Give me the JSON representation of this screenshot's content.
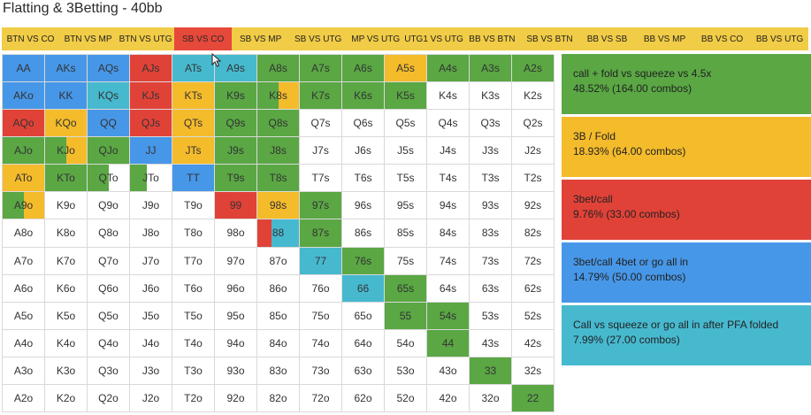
{
  "title": "Flatting & 3Betting - 40bb",
  "tabs": [
    {
      "label": "BTN VS CO",
      "active": false
    },
    {
      "label": "BTN VS MP",
      "active": false
    },
    {
      "label": "BTN VS UTG",
      "active": false
    },
    {
      "label": "SB VS CO",
      "active": true
    },
    {
      "label": "SB VS MP",
      "active": false
    },
    {
      "label": "SB VS UTG",
      "active": false
    },
    {
      "label": "MP VS UTG",
      "active": false
    },
    {
      "label": "UTG1 VS UTG",
      "active": false
    },
    {
      "label": "BB VS BTN",
      "active": false
    },
    {
      "label": "SB VS BTN",
      "active": false
    },
    {
      "label": "BB VS SB",
      "active": false
    },
    {
      "label": "BB VS MP",
      "active": false
    },
    {
      "label": "BB VS CO",
      "active": false
    },
    {
      "label": "BB VS UTG",
      "active": false
    }
  ],
  "colors": {
    "call_fold": "#5aa744",
    "fold3b": "#f4bb2b",
    "call3bet": "#e14238",
    "call4bet": "#4797e8",
    "squeeze": "#47b9cf",
    "tab_bar": "#f1cc46",
    "tab_active": "#e6483a"
  },
  "legend": [
    {
      "key": "call_fold",
      "label": "call + fold vs squeeze vs 4.5x",
      "stats": "48.52% (164.00 combos)"
    },
    {
      "key": "fold3b",
      "label": "3B / Fold",
      "stats": "18.93% (64.00 combos)"
    },
    {
      "key": "call3bet",
      "label": "3bet/call",
      "stats": "9.76% (33.00 combos)"
    },
    {
      "key": "call4bet",
      "label": "3bet/call 4bet or go all in",
      "stats": "14.79% (50.00 combos)"
    },
    {
      "key": "squeeze",
      "label": "Call vs squeeze or go all in after PFA folded",
      "stats": "7.99% (27.00 combos)"
    }
  ],
  "grid": [
    [
      {
        "hand": "AA",
        "fill": [
          [
            "call4bet",
            1
          ]
        ]
      },
      {
        "hand": "AKs",
        "fill": [
          [
            "call4bet",
            1
          ]
        ]
      },
      {
        "hand": "AQs",
        "fill": [
          [
            "call4bet",
            1
          ]
        ]
      },
      {
        "hand": "AJs",
        "fill": [
          [
            "call3bet",
            1
          ]
        ]
      },
      {
        "hand": "ATs",
        "fill": [
          [
            "squeeze",
            1
          ]
        ]
      },
      {
        "hand": "A9s",
        "fill": [
          [
            "squeeze",
            1
          ]
        ]
      },
      {
        "hand": "A8s",
        "fill": [
          [
            "call_fold",
            1
          ]
        ]
      },
      {
        "hand": "A7s",
        "fill": [
          [
            "call_fold",
            1
          ]
        ]
      },
      {
        "hand": "A6s",
        "fill": [
          [
            "call_fold",
            1
          ]
        ]
      },
      {
        "hand": "A5s",
        "fill": [
          [
            "fold3b",
            1
          ]
        ]
      },
      {
        "hand": "A4s",
        "fill": [
          [
            "call_fold",
            1
          ]
        ]
      },
      {
        "hand": "A3s",
        "fill": [
          [
            "call_fold",
            1
          ]
        ]
      },
      {
        "hand": "A2s",
        "fill": [
          [
            "call_fold",
            1
          ]
        ]
      }
    ],
    [
      {
        "hand": "AKo",
        "fill": [
          [
            "call4bet",
            1
          ]
        ]
      },
      {
        "hand": "KK",
        "fill": [
          [
            "call4bet",
            1
          ]
        ]
      },
      {
        "hand": "KQs",
        "fill": [
          [
            "squeeze",
            1
          ]
        ]
      },
      {
        "hand": "KJs",
        "fill": [
          [
            "call3bet",
            1
          ]
        ]
      },
      {
        "hand": "KTs",
        "fill": [
          [
            "fold3b",
            1
          ]
        ]
      },
      {
        "hand": "K9s",
        "fill": [
          [
            "call_fold",
            1
          ]
        ]
      },
      {
        "hand": "K8s",
        "fill": [
          [
            "call_fold",
            0.5
          ],
          [
            "fold3b",
            0.5
          ]
        ]
      },
      {
        "hand": "K7s",
        "fill": [
          [
            "call_fold",
            1
          ]
        ]
      },
      {
        "hand": "K6s",
        "fill": [
          [
            "call_fold",
            1
          ]
        ]
      },
      {
        "hand": "K5s",
        "fill": [
          [
            "call_fold",
            1
          ]
        ]
      },
      {
        "hand": "K4s",
        "fill": []
      },
      {
        "hand": "K3s",
        "fill": []
      },
      {
        "hand": "K2s",
        "fill": []
      }
    ],
    [
      {
        "hand": "AQo",
        "fill": [
          [
            "call3bet",
            1
          ]
        ]
      },
      {
        "hand": "KQo",
        "fill": [
          [
            "fold3b",
            1
          ]
        ]
      },
      {
        "hand": "QQ",
        "fill": [
          [
            "call4bet",
            1
          ]
        ]
      },
      {
        "hand": "QJs",
        "fill": [
          [
            "call3bet",
            1
          ]
        ]
      },
      {
        "hand": "QTs",
        "fill": [
          [
            "fold3b",
            1
          ]
        ]
      },
      {
        "hand": "Q9s",
        "fill": [
          [
            "call_fold",
            1
          ]
        ]
      },
      {
        "hand": "Q8s",
        "fill": [
          [
            "call_fold",
            1
          ]
        ]
      },
      {
        "hand": "Q7s",
        "fill": []
      },
      {
        "hand": "Q6s",
        "fill": []
      },
      {
        "hand": "Q5s",
        "fill": []
      },
      {
        "hand": "Q4s",
        "fill": []
      },
      {
        "hand": "Q3s",
        "fill": []
      },
      {
        "hand": "Q2s",
        "fill": []
      }
    ],
    [
      {
        "hand": "AJo",
        "fill": [
          [
            "call_fold",
            1
          ]
        ]
      },
      {
        "hand": "KJo",
        "fill": [
          [
            "call_fold",
            0.5
          ],
          [
            "fold3b",
            0.5
          ]
        ]
      },
      {
        "hand": "QJo",
        "fill": [
          [
            "call_fold",
            1
          ]
        ]
      },
      {
        "hand": "JJ",
        "fill": [
          [
            "call4bet",
            1
          ]
        ]
      },
      {
        "hand": "JTs",
        "fill": [
          [
            "fold3b",
            1
          ]
        ]
      },
      {
        "hand": "J9s",
        "fill": [
          [
            "call_fold",
            1
          ]
        ]
      },
      {
        "hand": "J8s",
        "fill": [
          [
            "call_fold",
            1
          ]
        ]
      },
      {
        "hand": "J7s",
        "fill": []
      },
      {
        "hand": "J6s",
        "fill": []
      },
      {
        "hand": "J5s",
        "fill": []
      },
      {
        "hand": "J4s",
        "fill": []
      },
      {
        "hand": "J3s",
        "fill": []
      },
      {
        "hand": "J2s",
        "fill": []
      }
    ],
    [
      {
        "hand": "ATo",
        "fill": [
          [
            "fold3b",
            1
          ]
        ]
      },
      {
        "hand": "KTo",
        "fill": [
          [
            "call_fold",
            1
          ]
        ]
      },
      {
        "hand": "QTo",
        "fill": [
          [
            "call_fold",
            0.5
          ]
        ]
      },
      {
        "hand": "JTo",
        "fill": [
          [
            "call_fold",
            0.4
          ]
        ]
      },
      {
        "hand": "TT",
        "fill": [
          [
            "call4bet",
            1
          ]
        ]
      },
      {
        "hand": "T9s",
        "fill": [
          [
            "call_fold",
            1
          ]
        ]
      },
      {
        "hand": "T8s",
        "fill": [
          [
            "call_fold",
            1
          ]
        ]
      },
      {
        "hand": "T7s",
        "fill": []
      },
      {
        "hand": "T6s",
        "fill": []
      },
      {
        "hand": "T5s",
        "fill": []
      },
      {
        "hand": "T4s",
        "fill": []
      },
      {
        "hand": "T3s",
        "fill": []
      },
      {
        "hand": "T2s",
        "fill": []
      }
    ],
    [
      {
        "hand": "A9o",
        "fill": [
          [
            "call_fold",
            0.5
          ],
          [
            "fold3b",
            0.5
          ]
        ]
      },
      {
        "hand": "K9o",
        "fill": []
      },
      {
        "hand": "Q9o",
        "fill": []
      },
      {
        "hand": "J9o",
        "fill": []
      },
      {
        "hand": "T9o",
        "fill": []
      },
      {
        "hand": "99",
        "fill": [
          [
            "call3bet",
            1
          ]
        ]
      },
      {
        "hand": "98s",
        "fill": [
          [
            "fold3b",
            1
          ]
        ]
      },
      {
        "hand": "97s",
        "fill": [
          [
            "call_fold",
            1
          ]
        ]
      },
      {
        "hand": "96s",
        "fill": []
      },
      {
        "hand": "95s",
        "fill": []
      },
      {
        "hand": "94s",
        "fill": []
      },
      {
        "hand": "93s",
        "fill": []
      },
      {
        "hand": "92s",
        "fill": []
      }
    ],
    [
      {
        "hand": "A8o",
        "fill": []
      },
      {
        "hand": "K8o",
        "fill": []
      },
      {
        "hand": "Q8o",
        "fill": []
      },
      {
        "hand": "J8o",
        "fill": []
      },
      {
        "hand": "T8o",
        "fill": []
      },
      {
        "hand": "98o",
        "fill": []
      },
      {
        "hand": "88",
        "fill": [
          [
            "call3bet",
            0.35
          ],
          [
            "squeeze",
            0.65
          ]
        ]
      },
      {
        "hand": "87s",
        "fill": [
          [
            "call_fold",
            1
          ]
        ]
      },
      {
        "hand": "86s",
        "fill": []
      },
      {
        "hand": "85s",
        "fill": []
      },
      {
        "hand": "84s",
        "fill": []
      },
      {
        "hand": "83s",
        "fill": []
      },
      {
        "hand": "82s",
        "fill": []
      }
    ],
    [
      {
        "hand": "A7o",
        "fill": []
      },
      {
        "hand": "K7o",
        "fill": []
      },
      {
        "hand": "Q7o",
        "fill": []
      },
      {
        "hand": "J7o",
        "fill": []
      },
      {
        "hand": "T7o",
        "fill": []
      },
      {
        "hand": "97o",
        "fill": []
      },
      {
        "hand": "87o",
        "fill": []
      },
      {
        "hand": "77",
        "fill": [
          [
            "squeeze",
            1
          ]
        ]
      },
      {
        "hand": "76s",
        "fill": [
          [
            "call_fold",
            1
          ]
        ]
      },
      {
        "hand": "75s",
        "fill": []
      },
      {
        "hand": "74s",
        "fill": []
      },
      {
        "hand": "73s",
        "fill": []
      },
      {
        "hand": "72s",
        "fill": []
      }
    ],
    [
      {
        "hand": "A6o",
        "fill": []
      },
      {
        "hand": "K6o",
        "fill": []
      },
      {
        "hand": "Q6o",
        "fill": []
      },
      {
        "hand": "J6o",
        "fill": []
      },
      {
        "hand": "T6o",
        "fill": []
      },
      {
        "hand": "96o",
        "fill": []
      },
      {
        "hand": "86o",
        "fill": []
      },
      {
        "hand": "76o",
        "fill": []
      },
      {
        "hand": "66",
        "fill": [
          [
            "squeeze",
            1
          ]
        ]
      },
      {
        "hand": "65s",
        "fill": [
          [
            "call_fold",
            1
          ]
        ]
      },
      {
        "hand": "64s",
        "fill": []
      },
      {
        "hand": "63s",
        "fill": []
      },
      {
        "hand": "62s",
        "fill": []
      }
    ],
    [
      {
        "hand": "A5o",
        "fill": []
      },
      {
        "hand": "K5o",
        "fill": []
      },
      {
        "hand": "Q5o",
        "fill": []
      },
      {
        "hand": "J5o",
        "fill": []
      },
      {
        "hand": "T5o",
        "fill": []
      },
      {
        "hand": "95o",
        "fill": []
      },
      {
        "hand": "85o",
        "fill": []
      },
      {
        "hand": "75o",
        "fill": []
      },
      {
        "hand": "65o",
        "fill": []
      },
      {
        "hand": "55",
        "fill": [
          [
            "call_fold",
            1
          ]
        ]
      },
      {
        "hand": "54s",
        "fill": [
          [
            "call_fold",
            1
          ]
        ]
      },
      {
        "hand": "53s",
        "fill": []
      },
      {
        "hand": "52s",
        "fill": []
      }
    ],
    [
      {
        "hand": "A4o",
        "fill": []
      },
      {
        "hand": "K4o",
        "fill": []
      },
      {
        "hand": "Q4o",
        "fill": []
      },
      {
        "hand": "J4o",
        "fill": []
      },
      {
        "hand": "T4o",
        "fill": []
      },
      {
        "hand": "94o",
        "fill": []
      },
      {
        "hand": "84o",
        "fill": []
      },
      {
        "hand": "74o",
        "fill": []
      },
      {
        "hand": "64o",
        "fill": []
      },
      {
        "hand": "54o",
        "fill": []
      },
      {
        "hand": "44",
        "fill": [
          [
            "call_fold",
            1
          ]
        ]
      },
      {
        "hand": "43s",
        "fill": []
      },
      {
        "hand": "42s",
        "fill": []
      }
    ],
    [
      {
        "hand": "A3o",
        "fill": []
      },
      {
        "hand": "K3o",
        "fill": []
      },
      {
        "hand": "Q3o",
        "fill": []
      },
      {
        "hand": "J3o",
        "fill": []
      },
      {
        "hand": "T3o",
        "fill": []
      },
      {
        "hand": "93o",
        "fill": []
      },
      {
        "hand": "83o",
        "fill": []
      },
      {
        "hand": "73o",
        "fill": []
      },
      {
        "hand": "63o",
        "fill": []
      },
      {
        "hand": "53o",
        "fill": []
      },
      {
        "hand": "43o",
        "fill": []
      },
      {
        "hand": "33",
        "fill": [
          [
            "call_fold",
            1
          ]
        ]
      },
      {
        "hand": "32s",
        "fill": []
      }
    ],
    [
      {
        "hand": "A2o",
        "fill": []
      },
      {
        "hand": "K2o",
        "fill": []
      },
      {
        "hand": "Q2o",
        "fill": []
      },
      {
        "hand": "J2o",
        "fill": []
      },
      {
        "hand": "T2o",
        "fill": []
      },
      {
        "hand": "92o",
        "fill": []
      },
      {
        "hand": "82o",
        "fill": []
      },
      {
        "hand": "72o",
        "fill": []
      },
      {
        "hand": "62o",
        "fill": []
      },
      {
        "hand": "52o",
        "fill": []
      },
      {
        "hand": "42o",
        "fill": []
      },
      {
        "hand": "32o",
        "fill": []
      },
      {
        "hand": "22",
        "fill": [
          [
            "call_fold",
            1
          ]
        ]
      }
    ]
  ]
}
